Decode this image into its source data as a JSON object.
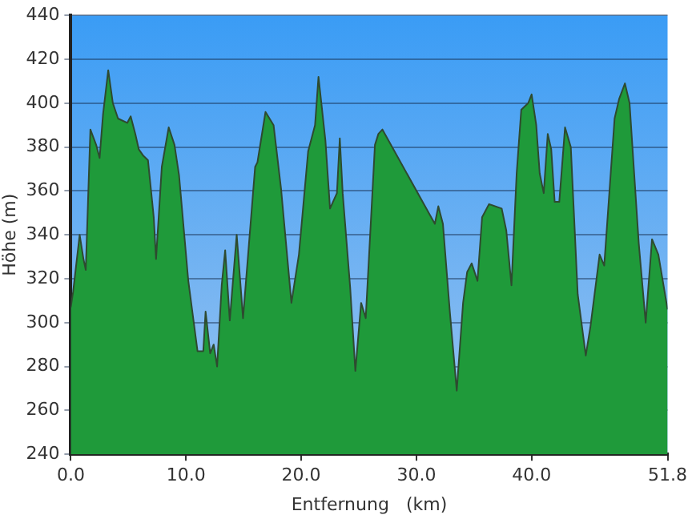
{
  "chart_data": {
    "type": "area",
    "xlabel": "Entfernung   (km)",
    "ylabel": "Höhe (m)",
    "x": [
      0,
      0.2,
      0.77,
      1.1,
      1.3,
      1.7,
      2.2,
      2.5,
      2.8,
      3.25,
      3.65,
      4.1,
      4.9,
      5.2,
      5.6,
      5.9,
      6.3,
      6.7,
      7.2,
      7.4,
      7.9,
      8.5,
      9.0,
      9.4,
      10.2,
      11.0,
      11.5,
      11.7,
      12.1,
      12.4,
      12.7,
      13.1,
      13.4,
      13.8,
      14.4,
      14.95,
      16.0,
      16.2,
      16.9,
      17.6,
      18.25,
      19.15,
      19.8,
      20.6,
      21.2,
      21.5,
      22.1,
      22.5,
      23.1,
      23.35,
      23.6,
      24.25,
      24.7,
      25.2,
      25.6,
      26.4,
      26.7,
      27.05,
      31.6,
      31.9,
      32.3,
      32.9,
      33.5,
      34.05,
      34.4,
      34.8,
      35.3,
      35.7,
      36.3,
      37.4,
      37.8,
      38.25,
      38.7,
      39.1,
      39.7,
      40.0,
      40.4,
      40.7,
      41.05,
      41.4,
      41.7,
      42.0,
      42.4,
      42.9,
      43.4,
      44.0,
      44.7,
      45.1,
      45.9,
      46.3,
      47.2,
      47.6,
      48.1,
      48.5,
      49.3,
      49.9,
      50.45,
      51.0,
      51.8
    ],
    "series": [
      {
        "color": "#1f9a3a",
        "values": [
          307,
          314,
          340,
          329,
          324,
          388,
          381,
          375,
          395,
          415,
          400,
          393,
          391,
          394,
          386,
          379,
          376,
          374,
          348,
          329,
          371,
          389,
          381,
          367,
          319,
          287,
          287,
          305,
          286,
          290,
          280,
          317,
          333,
          301,
          340,
          302,
          371,
          373,
          396,
          390,
          361,
          309,
          331,
          378,
          390,
          412,
          383,
          352,
          359,
          384,
          359,
          316,
          278,
          309,
          302,
          381,
          386,
          388,
          345,
          353,
          345,
          305,
          269,
          309,
          323,
          327,
          319,
          348,
          354,
          352,
          342,
          317,
          368,
          397,
          400,
          404,
          390,
          368,
          359,
          386,
          379,
          355,
          355,
          389,
          380,
          313,
          285,
          298,
          331,
          326,
          393,
          402,
          409,
          400,
          336,
          300,
          338,
          331,
          306
        ]
      }
    ],
    "xlim": [
      0,
      51.8
    ],
    "xticks": [
      {
        "value": 0,
        "label": "0.0"
      },
      {
        "value": 10,
        "label": "10.0"
      },
      {
        "value": 20,
        "label": "20.0"
      },
      {
        "value": 30,
        "label": "30.0"
      },
      {
        "value": 40,
        "label": "40.0"
      },
      {
        "value": 51.8,
        "label": "51.8"
      }
    ],
    "ylim": [
      240,
      440
    ],
    "yticks": [
      240,
      260,
      280,
      300,
      320,
      340,
      360,
      380,
      400,
      420,
      440
    ],
    "grid": "y"
  }
}
